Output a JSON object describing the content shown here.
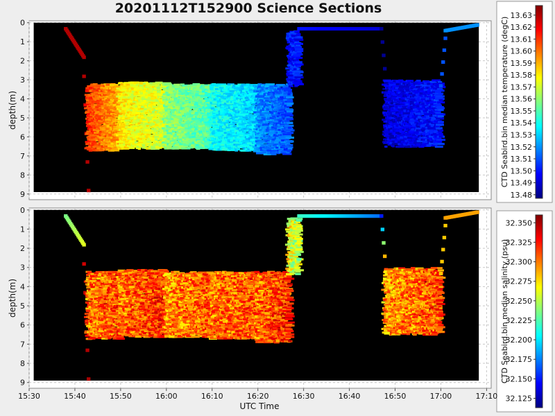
{
  "title": "20201112T152900 Science Sections",
  "xlabel": "UTC Time",
  "x_ticks": [
    "15:30",
    "15:40",
    "15:50",
    "16:00",
    "16:10",
    "16:20",
    "16:30",
    "16:40",
    "16:50",
    "17:00",
    "17:10"
  ],
  "chart_data": [
    {
      "type": "heatmap",
      "ylabel": "depth(m)",
      "y_ticks": [
        0,
        1,
        2,
        3,
        4,
        5,
        6,
        7,
        8,
        9
      ],
      "ylim": [
        9.3,
        -0.1
      ],
      "xlim": [
        "15:30",
        "17:11"
      ],
      "grid": true,
      "colorbar": {
        "label": "CTD Seabird.bin median temperature (degC)",
        "min": 13.477,
        "max": 13.638,
        "ticks": [
          "13.63",
          "13.62",
          "13.61",
          "13.60",
          "13.59",
          "13.58",
          "13.57",
          "13.56",
          "13.55",
          "13.54",
          "13.53",
          "13.52",
          "13.51",
          "13.50",
          "13.49",
          "13.48"
        ],
        "colormap": "jet"
      },
      "segments": [
        {
          "t0": "15:38",
          "t1": "15:42",
          "d0": 0.3,
          "d1": 1.8,
          "v0": 13.63,
          "v1": 13.63
        },
        {
          "t0": "15:42",
          "t1": "15:43",
          "d0": 2.8,
          "d1": 8.8,
          "v0": 13.63,
          "v1": 13.63
        },
        {
          "t0": "15:43",
          "t1": "15:50",
          "d0": 3.3,
          "d1": 6.7,
          "v0": 13.61,
          "v1": 13.59
        },
        {
          "t0": "15:50",
          "t1": "16:00",
          "d0": 3.2,
          "d1": 6.6,
          "v0": 13.58,
          "v1": 13.57
        },
        {
          "t0": "16:00",
          "t1": "16:10",
          "d0": 3.3,
          "d1": 6.6,
          "v0": 13.56,
          "v1": 13.55
        },
        {
          "t0": "16:10",
          "t1": "16:20",
          "d0": 3.3,
          "d1": 6.7,
          "v0": 13.54,
          "v1": 13.53
        },
        {
          "t0": "16:20",
          "t1": "16:27",
          "d0": 3.3,
          "d1": 6.9,
          "v0": 13.52,
          "v1": 13.51
        },
        {
          "t0": "16:27",
          "t1": "16:29",
          "d0": 0.5,
          "d1": 3.3,
          "v0": 13.5,
          "v1": 13.5
        },
        {
          "t0": "16:29",
          "t1": "16:47",
          "d0": 0.3,
          "d1": 0.3,
          "v0": 13.5,
          "v1": 13.49
        },
        {
          "t0": "16:47",
          "t1": "16:48",
          "d0": 0.3,
          "d1": 3.1,
          "v0": 13.48,
          "v1": 13.48
        },
        {
          "t0": "16:48",
          "t1": "17:00",
          "d0": 3.1,
          "d1": 6.5,
          "v0": 13.49,
          "v1": 13.5
        },
        {
          "t0": "17:00",
          "t1": "17:01",
          "d0": 3.3,
          "d1": 0.8,
          "v0": 13.51,
          "v1": 13.51
        },
        {
          "t0": "17:01",
          "t1": "17:08",
          "d0": 0.4,
          "d1": 0.1,
          "v0": 13.52,
          "v1": 13.52
        }
      ]
    },
    {
      "type": "heatmap",
      "ylabel": "depth(m)",
      "y_ticks": [
        0,
        1,
        2,
        3,
        4,
        5,
        6,
        7,
        8,
        9
      ],
      "ylim": [
        9.3,
        -0.1
      ],
      "xlim": [
        "15:30",
        "17:11"
      ],
      "grid": true,
      "colorbar": {
        "label": "CTD Seabird.bin median salinity (psu)",
        "min": 32.113,
        "max": 32.36,
        "ticks": [
          "32.350",
          "32.325",
          "32.300",
          "32.275",
          "32.250",
          "32.225",
          "32.200",
          "32.175",
          "32.150",
          "32.125"
        ],
        "colormap": "jet"
      },
      "segments": [
        {
          "t0": "15:38",
          "t1": "15:42",
          "d0": 0.3,
          "d1": 1.8,
          "v0": 32.235,
          "v1": 32.26
        },
        {
          "t0": "15:42",
          "t1": "15:43",
          "d0": 2.8,
          "d1": 8.8,
          "v0": 32.34,
          "v1": 32.35
        },
        {
          "t0": "15:43",
          "t1": "15:50",
          "d0": 3.3,
          "d1": 6.7,
          "v0": 32.3,
          "v1": 32.31
        },
        {
          "t0": "15:50",
          "t1": "16:00",
          "d0": 3.2,
          "d1": 6.6,
          "v0": 32.3,
          "v1": 32.32
        },
        {
          "t0": "16:00",
          "t1": "16:10",
          "d0": 3.3,
          "d1": 6.6,
          "v0": 32.29,
          "v1": 32.31
        },
        {
          "t0": "16:10",
          "t1": "16:20",
          "d0": 3.3,
          "d1": 6.7,
          "v0": 32.3,
          "v1": 32.31
        },
        {
          "t0": "16:20",
          "t1": "16:27",
          "d0": 3.3,
          "d1": 6.9,
          "v0": 32.3,
          "v1": 32.32
        },
        {
          "t0": "16:27",
          "t1": "16:29",
          "d0": 0.5,
          "d1": 3.3,
          "v0": 32.27,
          "v1": 32.25
        },
        {
          "t0": "16:29",
          "t1": "16:47",
          "d0": 0.3,
          "d1": 0.3,
          "v0": 32.22,
          "v1": 32.17
        },
        {
          "t0": "16:47",
          "t1": "16:48",
          "d0": 0.3,
          "d1": 3.1,
          "v0": 32.15,
          "v1": 32.33
        },
        {
          "t0": "16:48",
          "t1": "17:00",
          "d0": 3.1,
          "d1": 6.5,
          "v0": 32.29,
          "v1": 32.31
        },
        {
          "t0": "17:00",
          "t1": "17:01",
          "d0": 3.3,
          "d1": 0.8,
          "v0": 32.28,
          "v1": 32.28
        },
        {
          "t0": "17:01",
          "t1": "17:08",
          "d0": 0.4,
          "d1": 0.1,
          "v0": 32.29,
          "v1": 32.29
        }
      ]
    }
  ]
}
